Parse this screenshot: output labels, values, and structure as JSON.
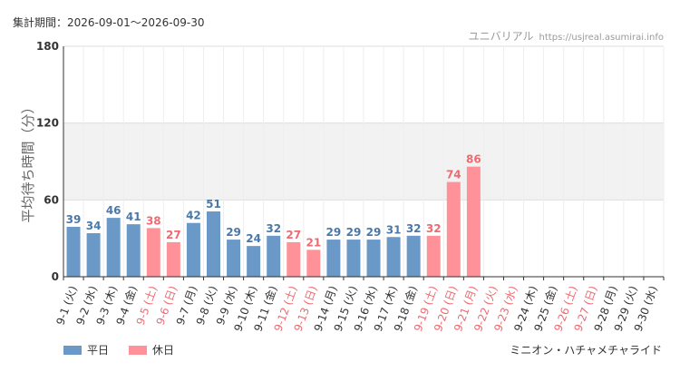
{
  "header": {
    "period_label": "集計期間：2026-09-01～2026-09-30",
    "brand": "ユニバリアル",
    "url": "https://usjreal.asumirai.info"
  },
  "legend": {
    "weekday": "平日",
    "holiday": "休日"
  },
  "footer": {
    "attraction": "ミニオン・ハチャメチャライド"
  },
  "colors": {
    "weekday": "#6a99c7",
    "holiday": "#ff9298",
    "weekday_text": "#4a78a8",
    "holiday_text": "#ee6a72",
    "band": "#f2f2f2",
    "grid": "#dddddd"
  },
  "chart_data": {
    "type": "bar",
    "ylabel": "平均待ち時間（分）",
    "ylim": [
      0,
      180
    ],
    "yticks": [
      0,
      60,
      120,
      180
    ],
    "band": [
      60,
      120
    ],
    "categories": [
      "9-1 (火)",
      "9-2 (水)",
      "9-3 (木)",
      "9-4 (金)",
      "9-5 (土)",
      "9-6 (日)",
      "9-7 (月)",
      "9-8 (火)",
      "9-9 (水)",
      "9-10 (木)",
      "9-11 (金)",
      "9-12 (土)",
      "9-13 (日)",
      "9-14 (月)",
      "9-15 (火)",
      "9-16 (水)",
      "9-17 (木)",
      "9-18 (金)",
      "9-19 (土)",
      "9-20 (日)",
      "9-21 (月)",
      "9-22 (火)",
      "9-23 (水)",
      "9-24 (木)",
      "9-25 (金)",
      "9-26 (土)",
      "9-27 (日)",
      "9-28 (月)",
      "9-29 (火)",
      "9-30 (水)"
    ],
    "holiday": [
      false,
      false,
      false,
      false,
      true,
      true,
      false,
      false,
      false,
      false,
      false,
      true,
      true,
      false,
      false,
      false,
      false,
      false,
      true,
      true,
      true,
      true,
      true,
      false,
      false,
      true,
      true,
      false,
      false,
      false
    ],
    "values": [
      39,
      34,
      46,
      41,
      38,
      27,
      42,
      51,
      29,
      24,
      32,
      27,
      21,
      29,
      29,
      29,
      31,
      32,
      32,
      74,
      86,
      null,
      null,
      null,
      null,
      null,
      null,
      null,
      null,
      null
    ]
  }
}
